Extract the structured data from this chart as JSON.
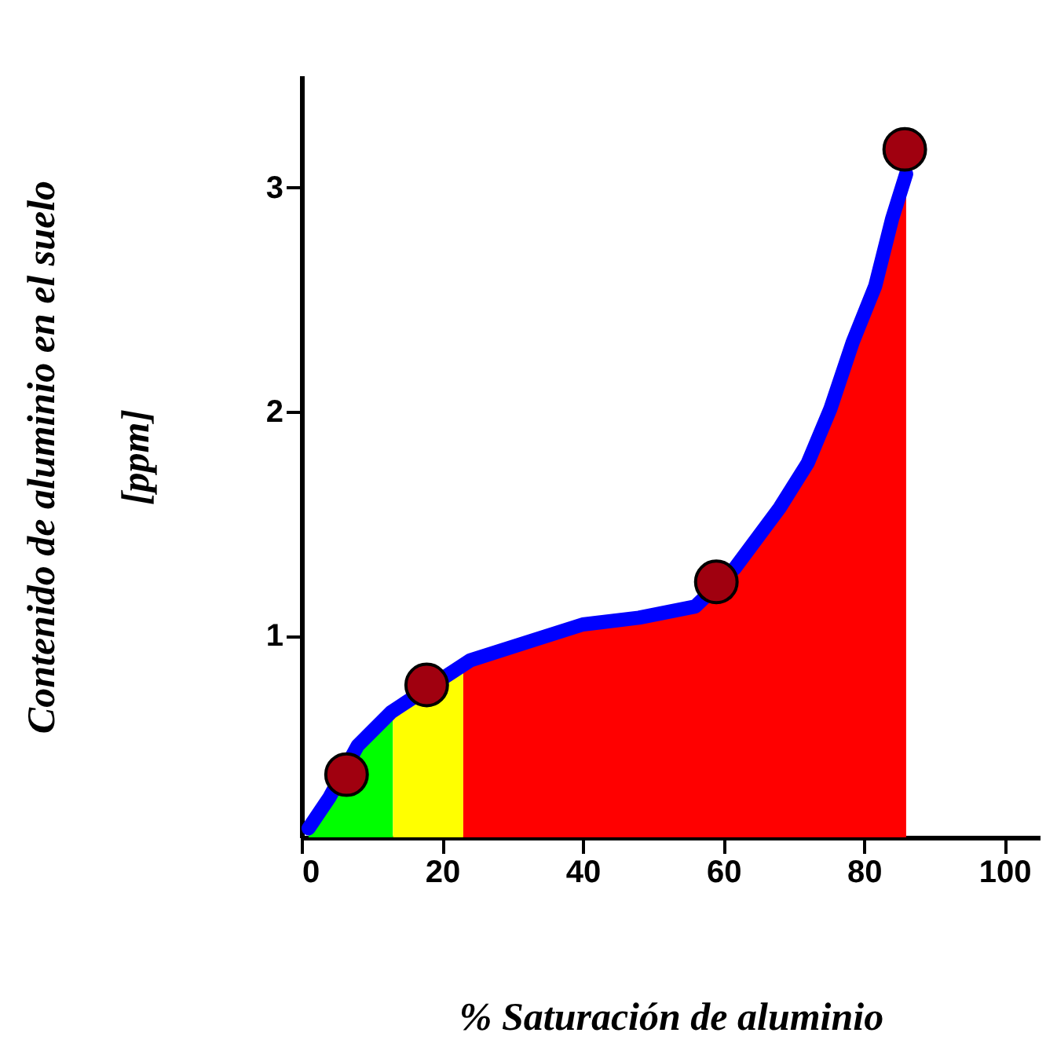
{
  "chart_data": {
    "type": "area",
    "xlabel": "% Saturación de aluminio",
    "ylabel": "Contenido de aluminio en el suelo [ppm]",
    "xlim": [
      0,
      105
    ],
    "ylim": [
      0.1,
      3.5
    ],
    "xticks": [
      0,
      20,
      40,
      60,
      80,
      100
    ],
    "yticks": [
      1,
      2,
      3
    ],
    "grid": false,
    "series": [
      {
        "color": "#00ff00",
        "x": [
          1,
          4,
          8,
          12.8,
          13
        ],
        "values": [
          0.14,
          0.28,
          0.51,
          0.66,
          0.67
        ]
      },
      {
        "color": "#ffff00",
        "x": [
          13,
          23
        ],
        "values": [
          0.67,
          0.87
        ]
      },
      {
        "color": "#ff0000",
        "x": [
          23,
          24,
          32,
          40,
          48,
          56,
          61.6,
          68,
          72,
          75.2,
          78.4,
          81.6,
          84,
          86
        ],
        "values": [
          0.87,
          0.89,
          0.97,
          1.05,
          1.08,
          1.13,
          1.3,
          1.57,
          1.77,
          2.01,
          2.31,
          2.56,
          2.86,
          3.06
        ]
      },
      {
        "type": "line",
        "color": "#0000ff",
        "x": [
          1,
          4,
          8,
          12.8,
          24,
          32,
          40,
          48,
          56,
          61.6,
          68,
          72,
          75.2,
          78.4,
          81.6,
          84,
          86
        ],
        "values": [
          0.14,
          0.28,
          0.51,
          0.66,
          0.89,
          0.97,
          1.05,
          1.08,
          1.13,
          1.3,
          1.57,
          1.77,
          2.01,
          2.31,
          2.56,
          2.86,
          3.06
        ]
      },
      {
        "type": "scatter",
        "color": "#a0000f",
        "x": [
          6.4,
          17.8,
          59,
          85.8
        ],
        "values": [
          0.38,
          0.78,
          1.24,
          3.17
        ]
      }
    ]
  }
}
